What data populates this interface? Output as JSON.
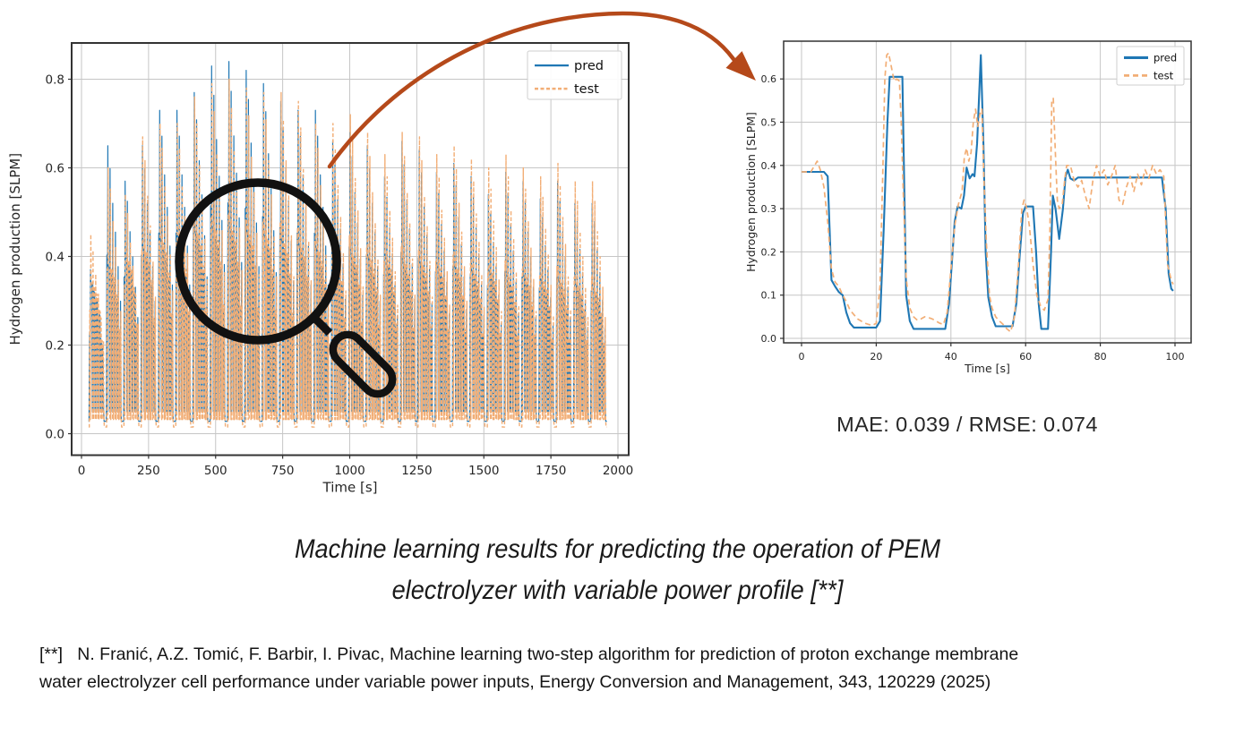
{
  "page": {
    "background": "#ffffff"
  },
  "colors": {
    "pred": "#1f77b4",
    "test": "#f2ae76",
    "arrow": "#b5491a",
    "magnifier": "#111111",
    "grid": "#c6c6c6",
    "spine": "#333333",
    "text": "#262626",
    "legend_border": "#cccccc"
  },
  "chart_data": [
    {
      "id": "left",
      "type": "line",
      "title": "",
      "xlabel": "Time [s]",
      "ylabel": "Hydrogen production [SLPM]",
      "xticks": [
        0,
        250,
        500,
        750,
        1000,
        1250,
        1500,
        1750,
        2000
      ],
      "xtick_labels": [
        "0",
        "250",
        "500",
        "750",
        "1000",
        "1250",
        "1500",
        "1750",
        "2000"
      ],
      "yticks": [
        0.0,
        0.2,
        0.4,
        0.6,
        0.8
      ],
      "ytick_labels": [
        "0.0",
        "0.2",
        "0.4",
        "0.6",
        "0.8"
      ],
      "xlim": [
        -36,
        2041
      ],
      "ylim": [
        -0.049,
        0.881
      ],
      "grid": true,
      "legend_position": "upper right",
      "legend": [
        "pred",
        "test"
      ],
      "series_note": "Dense cyclic spiky signal, ~30 power cycles of ~64.5 s; each cycle spikes from baseline up to a peak, holds intermediate plateaus, then returns to baseline. Peaks rise to ~0.84 SLPM near t=450-550 s then decay to ~0.52 by t=1950 s.",
      "waveform": {
        "cycle_start": 26,
        "cycle_period": 64.5,
        "baseline_pred": 0.028,
        "baseline_test": 0.015,
        "low_pred": 0.05,
        "low_test": 0.032,
        "pred_peaks": [
          0.37,
          0.65,
          0.57,
          0.65,
          0.73,
          0.73,
          0.77,
          0.83,
          0.84,
          0.82,
          0.79,
          0.75,
          0.73,
          0.73,
          0.66,
          0.68,
          0.65,
          0.58,
          0.66,
          0.64,
          0.59,
          0.61,
          0.58,
          0.54,
          0.59,
          0.57,
          0.53,
          0.57,
          0.52,
          0.52
        ],
        "test_peaks": [
          0.45,
          0.6,
          0.54,
          0.67,
          0.7,
          0.7,
          0.76,
          0.79,
          0.8,
          0.78,
          0.77,
          0.77,
          0.75,
          0.7,
          0.7,
          0.72,
          0.68,
          0.63,
          0.68,
          0.67,
          0.63,
          0.65,
          0.62,
          0.6,
          0.63,
          0.6,
          0.58,
          0.61,
          0.57,
          0.57
        ],
        "plateau": [
          0.34,
          0.38,
          0.4,
          0.42,
          0.44,
          0.45,
          0.46,
          0.47,
          0.47,
          0.46,
          0.45,
          0.44,
          0.43,
          0.42,
          0.42,
          0.41,
          0.4,
          0.4,
          0.39,
          0.39,
          0.38,
          0.38,
          0.37,
          0.37,
          0.36,
          0.36,
          0.35,
          0.35,
          0.34,
          0.33
        ]
      }
    },
    {
      "id": "right",
      "type": "line",
      "title": "",
      "xlabel": "Time [s]",
      "ylabel": "Hydrogen production [SLPM]",
      "xticks": [
        0,
        20,
        40,
        60,
        80,
        100
      ],
      "xtick_labels": [
        "0",
        "20",
        "40",
        "60",
        "80",
        "100"
      ],
      "yticks": [
        0.0,
        0.1,
        0.2,
        0.3,
        0.4,
        0.5,
        0.6
      ],
      "ytick_labels": [
        "0.0",
        "0.1",
        "0.2",
        "0.3",
        "0.4",
        "0.5",
        "0.6"
      ],
      "xlim": [
        -5,
        104.3
      ],
      "ylim": [
        -0.012,
        0.69
      ],
      "grid": true,
      "legend_position": "upper right",
      "legend": [
        "pred",
        "test"
      ],
      "series": [
        {
          "name": "pred",
          "points": [
            [
              0,
              0.385
            ],
            [
              6,
              0.385
            ],
            [
              7,
              0.375
            ],
            [
              8,
              0.135
            ],
            [
              9,
              0.12
            ],
            [
              10,
              0.107
            ],
            [
              11,
              0.1
            ],
            [
              12,
              0.06
            ],
            [
              13,
              0.035
            ],
            [
              14,
              0.025
            ],
            [
              20,
              0.025
            ],
            [
              21,
              0.04
            ],
            [
              22,
              0.25
            ],
            [
              23,
              0.5
            ],
            [
              23.6,
              0.605
            ],
            [
              27,
              0.605
            ],
            [
              27.5,
              0.35
            ],
            [
              28,
              0.1
            ],
            [
              29,
              0.04
            ],
            [
              30,
              0.022
            ],
            [
              38.5,
              0.022
            ],
            [
              39.5,
              0.08
            ],
            [
              41,
              0.27
            ],
            [
              41.8,
              0.305
            ],
            [
              42.8,
              0.3
            ],
            [
              43.5,
              0.33
            ],
            [
              44.2,
              0.395
            ],
            [
              45,
              0.37
            ],
            [
              45.8,
              0.38
            ],
            [
              46.3,
              0.375
            ],
            [
              47,
              0.45
            ],
            [
              48,
              0.655
            ],
            [
              48.7,
              0.45
            ],
            [
              49.3,
              0.2
            ],
            [
              50,
              0.095
            ],
            [
              51,
              0.05
            ],
            [
              52,
              0.028
            ],
            [
              56.5,
              0.028
            ],
            [
              57.5,
              0.08
            ],
            [
              58.5,
              0.2
            ],
            [
              59.3,
              0.29
            ],
            [
              60,
              0.305
            ],
            [
              62,
              0.305
            ],
            [
              62.8,
              0.2
            ],
            [
              63.5,
              0.08
            ],
            [
              64.2,
              0.022
            ],
            [
              66,
              0.022
            ],
            [
              66.8,
              0.2
            ],
            [
              67.3,
              0.33
            ],
            [
              68,
              0.3
            ],
            [
              69,
              0.23
            ],
            [
              70,
              0.3
            ],
            [
              70.7,
              0.375
            ],
            [
              71.3,
              0.39
            ],
            [
              72,
              0.37
            ],
            [
              73,
              0.365
            ],
            [
              74,
              0.372
            ],
            [
              96.5,
              0.372
            ],
            [
              97.5,
              0.3
            ],
            [
              98.3,
              0.15
            ],
            [
              99,
              0.115
            ],
            [
              99.5,
              0.11
            ]
          ]
        },
        {
          "name": "test",
          "points": [
            [
              0,
              0.385
            ],
            [
              2.5,
              0.385
            ],
            [
              3.5,
              0.4
            ],
            [
              4.2,
              0.41
            ],
            [
              5,
              0.39
            ],
            [
              6,
              0.35
            ],
            [
              7,
              0.27
            ],
            [
              8,
              0.16
            ],
            [
              9,
              0.13
            ],
            [
              10,
              0.12
            ],
            [
              11,
              0.1
            ],
            [
              12,
              0.085
            ],
            [
              13,
              0.065
            ],
            [
              14,
              0.055
            ],
            [
              15,
              0.045
            ],
            [
              16,
              0.04
            ],
            [
              17,
              0.035
            ],
            [
              18,
              0.032
            ],
            [
              19,
              0.03
            ],
            [
              20,
              0.035
            ],
            [
              21,
              0.12
            ],
            [
              21.8,
              0.4
            ],
            [
              22.3,
              0.6
            ],
            [
              22.8,
              0.655
            ],
            [
              23.3,
              0.66
            ],
            [
              24,
              0.63
            ],
            [
              24.8,
              0.595
            ],
            [
              25.5,
              0.6
            ],
            [
              26.2,
              0.595
            ],
            [
              26.7,
              0.5
            ],
            [
              27.2,
              0.35
            ],
            [
              28,
              0.14
            ],
            [
              29,
              0.07
            ],
            [
              30,
              0.05
            ],
            [
              31,
              0.042
            ],
            [
              32,
              0.045
            ],
            [
              33,
              0.05
            ],
            [
              34,
              0.048
            ],
            [
              35,
              0.045
            ],
            [
              36,
              0.04
            ],
            [
              37,
              0.035
            ],
            [
              38,
              0.032
            ],
            [
              39,
              0.06
            ],
            [
              40,
              0.16
            ],
            [
              41,
              0.26
            ],
            [
              42,
              0.31
            ],
            [
              43,
              0.34
            ],
            [
              43.6,
              0.42
            ],
            [
              44.2,
              0.44
            ],
            [
              44.8,
              0.41
            ],
            [
              45.4,
              0.43
            ],
            [
              46,
              0.5
            ],
            [
              46.6,
              0.53
            ],
            [
              47.2,
              0.49
            ],
            [
              47.8,
              0.52
            ],
            [
              48.3,
              0.53
            ],
            [
              48.8,
              0.38
            ],
            [
              49.5,
              0.22
            ],
            [
              50.3,
              0.1
            ],
            [
              51,
              0.07
            ],
            [
              52,
              0.05
            ],
            [
              53,
              0.04
            ],
            [
              54,
              0.032
            ],
            [
              55,
              0.022
            ],
            [
              56,
              0.015
            ],
            [
              57,
              0.05
            ],
            [
              58,
              0.16
            ],
            [
              59,
              0.3
            ],
            [
              59.6,
              0.32
            ],
            [
              60.3,
              0.3
            ],
            [
              61,
              0.26
            ],
            [
              62,
              0.17
            ],
            [
              63,
              0.1
            ],
            [
              64,
              0.075
            ],
            [
              65,
              0.065
            ],
            [
              66,
              0.09
            ],
            [
              66.5,
              0.25
            ],
            [
              67,
              0.55
            ],
            [
              67.4,
              0.555
            ],
            [
              68,
              0.42
            ],
            [
              68.5,
              0.32
            ],
            [
              69,
              0.3
            ],
            [
              69.8,
              0.31
            ],
            [
              70.5,
              0.37
            ],
            [
              71,
              0.4
            ],
            [
              72,
              0.4
            ],
            [
              73,
              0.365
            ],
            [
              74,
              0.35
            ],
            [
              75,
              0.365
            ],
            [
              76,
              0.33
            ],
            [
              77,
              0.3
            ],
            [
              78,
              0.365
            ],
            [
              79,
              0.4
            ],
            [
              80,
              0.375
            ],
            [
              81,
              0.39
            ],
            [
              82,
              0.355
            ],
            [
              83,
              0.375
            ],
            [
              84,
              0.4
            ],
            [
              85,
              0.32
            ],
            [
              86,
              0.31
            ],
            [
              87,
              0.35
            ],
            [
              88,
              0.375
            ],
            [
              89,
              0.34
            ],
            [
              90,
              0.38
            ],
            [
              91,
              0.355
            ],
            [
              92,
              0.39
            ],
            [
              93,
              0.37
            ],
            [
              94,
              0.4
            ],
            [
              95,
              0.38
            ],
            [
              96,
              0.39
            ],
            [
              97,
              0.375
            ],
            [
              98,
              0.17
            ],
            [
              99,
              0.135
            ],
            [
              99.5,
              0.125
            ]
          ]
        }
      ]
    }
  ],
  "metrics": {
    "text": "MAE: 0.039 / RMSE: 0.074"
  },
  "caption": {
    "line1": "Machine learning results for predicting the operation of PEM",
    "line2": "electrolyzer with variable power profile [**]"
  },
  "reference": {
    "line1": "[**]   N. Franić, A.Z. Tomić, F. Barbir, I. Pivac, Machine learning two-step algorithm for prediction of proton exchange membrane",
    "line2": "water electrolyzer cell performance under variable power inputs, Energy Conversion and Management, 343, 120229 (2025)"
  }
}
